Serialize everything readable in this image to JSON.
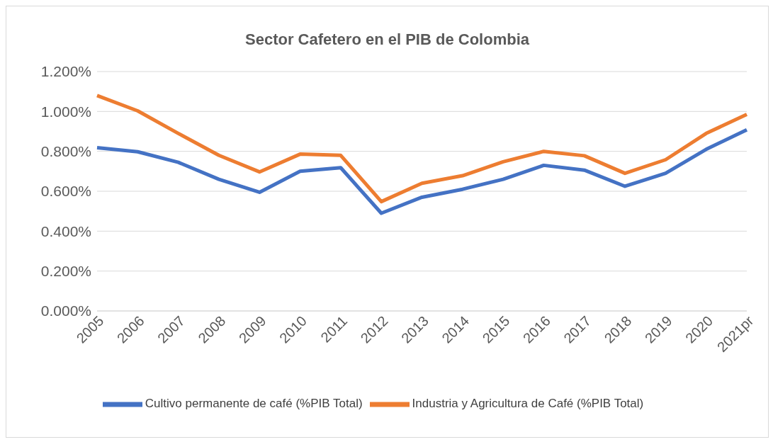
{
  "chart_data": {
    "type": "line",
    "title": "Sector Cafetero en el PIB de Colombia",
    "categories": [
      "2005",
      "2006",
      "2007",
      "2008",
      "2009",
      "2010",
      "2011",
      "2012",
      "2013",
      "2014",
      "2015",
      "2016",
      "2017",
      "2018",
      "2019",
      "2020",
      "2021pr"
    ],
    "series": [
      {
        "name": "Cultivo permanente de café (%PIB Total)",
        "color": "#4472c4",
        "values": [
          0.818,
          0.798,
          0.745,
          0.66,
          0.595,
          0.7,
          0.718,
          0.49,
          0.57,
          0.61,
          0.66,
          0.73,
          0.706,
          0.625,
          0.69,
          0.81,
          0.908
        ]
      },
      {
        "name": "Industria y Agricultura de Café (%PIB Total)",
        "color": "#ed7d31",
        "values": [
          1.08,
          1.003,
          0.89,
          0.78,
          0.697,
          0.786,
          0.78,
          0.548,
          0.64,
          0.678,
          0.748,
          0.8,
          0.778,
          0.69,
          0.758,
          0.89,
          0.985
        ]
      }
    ],
    "ylim": [
      0,
      1.2
    ],
    "yticks": [
      {
        "value": 0,
        "label": "0.000%"
      },
      {
        "value": 0.2,
        "label": "0.200%"
      },
      {
        "value": 0.4,
        "label": "0.400%"
      },
      {
        "value": 0.6,
        "label": "0.600%"
      },
      {
        "value": 0.8,
        "label": "0.800%"
      },
      {
        "value": 1,
        "label": "1.000%"
      },
      {
        "value": 1.2,
        "label": "1.200%"
      }
    ],
    "grid": "y",
    "legend": "bottom",
    "marker": "none",
    "line_style": "solid"
  }
}
